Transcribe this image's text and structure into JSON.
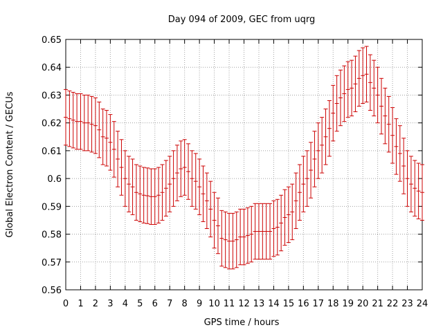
{
  "chart_data": {
    "type": "scatter",
    "title": "Day 094 of 2009, GEC from uqrg",
    "xlabel": "GPS time / hours",
    "ylabel": "Global Electron Content / GECUs",
    "xlim": [
      0,
      24
    ],
    "ylim": [
      0.56,
      0.65
    ],
    "xticks": [
      "0",
      "1",
      "2",
      "3",
      "4",
      "5",
      "6",
      "7",
      "8",
      "9",
      "10",
      "11",
      "12",
      "13",
      "14",
      "15",
      "16",
      "17",
      "18",
      "19",
      "20",
      "21",
      "22",
      "23",
      "24"
    ],
    "yticks": [
      "0.56",
      "0.57",
      "0.58",
      "0.59",
      "0.6",
      "0.61",
      "0.62",
      "0.63",
      "0.64",
      "0.65"
    ],
    "grid": true,
    "error_bar_color": "#cc0000",
    "error_bar_halfwidth": 0.01,
    "series": [
      {
        "points": [
          [
            0.0,
            0.622
          ],
          [
            0.25,
            0.6215
          ],
          [
            0.5,
            0.621
          ],
          [
            0.75,
            0.6205
          ],
          [
            1.0,
            0.6205
          ],
          [
            1.25,
            0.62
          ],
          [
            1.5,
            0.62
          ],
          [
            1.75,
            0.6195
          ],
          [
            2.0,
            0.619
          ],
          [
            2.25,
            0.6175
          ],
          [
            2.5,
            0.615
          ],
          [
            2.75,
            0.6145
          ],
          [
            3.0,
            0.613
          ],
          [
            3.25,
            0.6105
          ],
          [
            3.5,
            0.607
          ],
          [
            3.75,
            0.604
          ],
          [
            4.0,
            0.6
          ],
          [
            4.25,
            0.598
          ],
          [
            4.5,
            0.597
          ],
          [
            4.75,
            0.595
          ],
          [
            5.0,
            0.5945
          ],
          [
            5.25,
            0.594
          ],
          [
            5.5,
            0.5938
          ],
          [
            5.75,
            0.5935
          ],
          [
            6.0,
            0.5935
          ],
          [
            6.25,
            0.594
          ],
          [
            6.5,
            0.595
          ],
          [
            6.75,
            0.5965
          ],
          [
            7.0,
            0.598
          ],
          [
            7.25,
            0.6
          ],
          [
            7.5,
            0.602
          ],
          [
            7.75,
            0.6035
          ],
          [
            8.0,
            0.604
          ],
          [
            8.25,
            0.6025
          ],
          [
            8.5,
            0.6
          ],
          [
            8.75,
            0.599
          ],
          [
            9.0,
            0.597
          ],
          [
            9.25,
            0.5945
          ],
          [
            9.5,
            0.592
          ],
          [
            9.75,
            0.589
          ],
          [
            10.0,
            0.585
          ],
          [
            10.25,
            0.583
          ],
          [
            10.5,
            0.5785
          ],
          [
            10.75,
            0.578
          ],
          [
            11.0,
            0.5775
          ],
          [
            11.25,
            0.5775
          ],
          [
            11.5,
            0.578
          ],
          [
            11.75,
            0.579
          ],
          [
            12.0,
            0.579
          ],
          [
            12.25,
            0.5795
          ],
          [
            12.5,
            0.58
          ],
          [
            12.75,
            0.581
          ],
          [
            13.0,
            0.581
          ],
          [
            13.25,
            0.581
          ],
          [
            13.5,
            0.581
          ],
          [
            13.75,
            0.581
          ],
          [
            14.0,
            0.582
          ],
          [
            14.25,
            0.5825
          ],
          [
            14.5,
            0.584
          ],
          [
            14.75,
            0.586
          ],
          [
            15.0,
            0.587
          ],
          [
            15.25,
            0.588
          ],
          [
            15.5,
            0.592
          ],
          [
            15.75,
            0.595
          ],
          [
            16.0,
            0.598
          ],
          [
            16.25,
            0.6
          ],
          [
            16.5,
            0.603
          ],
          [
            16.75,
            0.607
          ],
          [
            17.0,
            0.61
          ],
          [
            17.25,
            0.612
          ],
          [
            17.5,
            0.615
          ],
          [
            17.75,
            0.618
          ],
          [
            18.0,
            0.6235
          ],
          [
            18.25,
            0.627
          ],
          [
            18.5,
            0.629
          ],
          [
            18.75,
            0.6305
          ],
          [
            19.0,
            0.632
          ],
          [
            19.25,
            0.6325
          ],
          [
            19.5,
            0.634
          ],
          [
            19.75,
            0.636
          ],
          [
            20.0,
            0.637
          ],
          [
            20.25,
            0.6375
          ],
          [
            20.5,
            0.6345
          ],
          [
            20.75,
            0.6325
          ],
          [
            21.0,
            0.63
          ],
          [
            21.25,
            0.626
          ],
          [
            21.5,
            0.6225
          ],
          [
            21.75,
            0.6195
          ],
          [
            22.0,
            0.6155
          ],
          [
            22.25,
            0.6115
          ],
          [
            22.5,
            0.609
          ],
          [
            22.75,
            0.6045
          ],
          [
            23.0,
            0.6
          ],
          [
            23.25,
            0.598
          ],
          [
            23.5,
            0.5965
          ],
          [
            23.75,
            0.5955
          ],
          [
            24.0,
            0.595
          ]
        ]
      }
    ]
  }
}
